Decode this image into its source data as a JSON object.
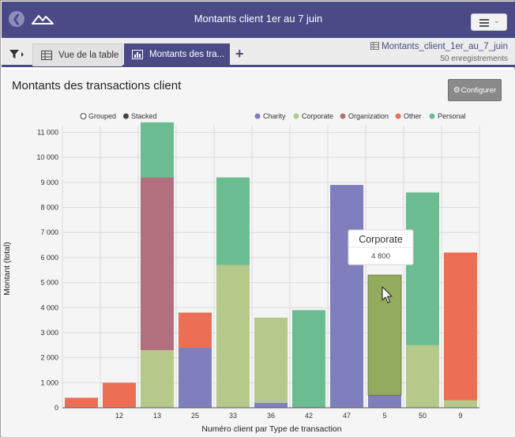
{
  "header": {
    "title": "Montants client 1er au 7 juin"
  },
  "tabs": {
    "table_label": "Vue de la table",
    "chart_label": "Montants des tra..."
  },
  "dataset": {
    "name": "Montants_client_1er_au_7_juin",
    "count": "50 enregistrements"
  },
  "panel": {
    "title": "Montants des transactions client",
    "configure_label": "Configurer"
  },
  "colors": {
    "topbar": "#4a4a87",
    "Charity": "#7f7fbd",
    "Corporate": "#b5c98a",
    "Organization": "#b2707f",
    "Other": "#ec6e55",
    "Personal": "#6cbc91",
    "Corporate_highlight": "#93ab5d"
  },
  "legend": {
    "mode_grouped": "Grouped",
    "mode_stacked": "Stacked",
    "selected_mode": "Stacked"
  },
  "tooltip": {
    "title": "Corporate",
    "value": "4 800"
  },
  "chart_data": {
    "type": "bar",
    "stacked": true,
    "xlabel": "Numéro client par Type de transaction",
    "ylabel": "Montant (total)",
    "ylim": [
      0,
      11300
    ],
    "yticks": [
      0,
      1000,
      2000,
      3000,
      4000,
      5000,
      6000,
      7000,
      8000,
      9000,
      10000,
      11000
    ],
    "ytick_labels": [
      "0",
      "1 000",
      "2 000",
      "3 000",
      "4 000",
      "5 000",
      "6 000",
      "7 000",
      "8 000",
      "9 000",
      "10 000",
      "11 000"
    ],
    "categories": [
      "",
      "12",
      "13",
      "25",
      "33",
      "36",
      "42",
      "47",
      "5",
      "50",
      "9"
    ],
    "series": [
      {
        "name": "Charity",
        "values": [
          0,
          0,
          0,
          2400,
          0,
          200,
          0,
          8900,
          500,
          0,
          0
        ]
      },
      {
        "name": "Corporate",
        "values": [
          0,
          0,
          2300,
          0,
          5700,
          3400,
          0,
          0,
          4800,
          2500,
          300
        ]
      },
      {
        "name": "Organization",
        "values": [
          0,
          0,
          6900,
          0,
          0,
          0,
          0,
          0,
          0,
          0,
          0
        ]
      },
      {
        "name": "Other",
        "values": [
          400,
          1000,
          0,
          1400,
          0,
          0,
          0,
          0,
          0,
          0,
          5900
        ]
      },
      {
        "name": "Personal",
        "values": [
          0,
          0,
          2200,
          0,
          3500,
          0,
          3900,
          0,
          0,
          6100,
          0
        ]
      }
    ],
    "legend_position": "top",
    "grid": true,
    "highlighted": {
      "category": "5",
      "series": "Corporate"
    }
  }
}
